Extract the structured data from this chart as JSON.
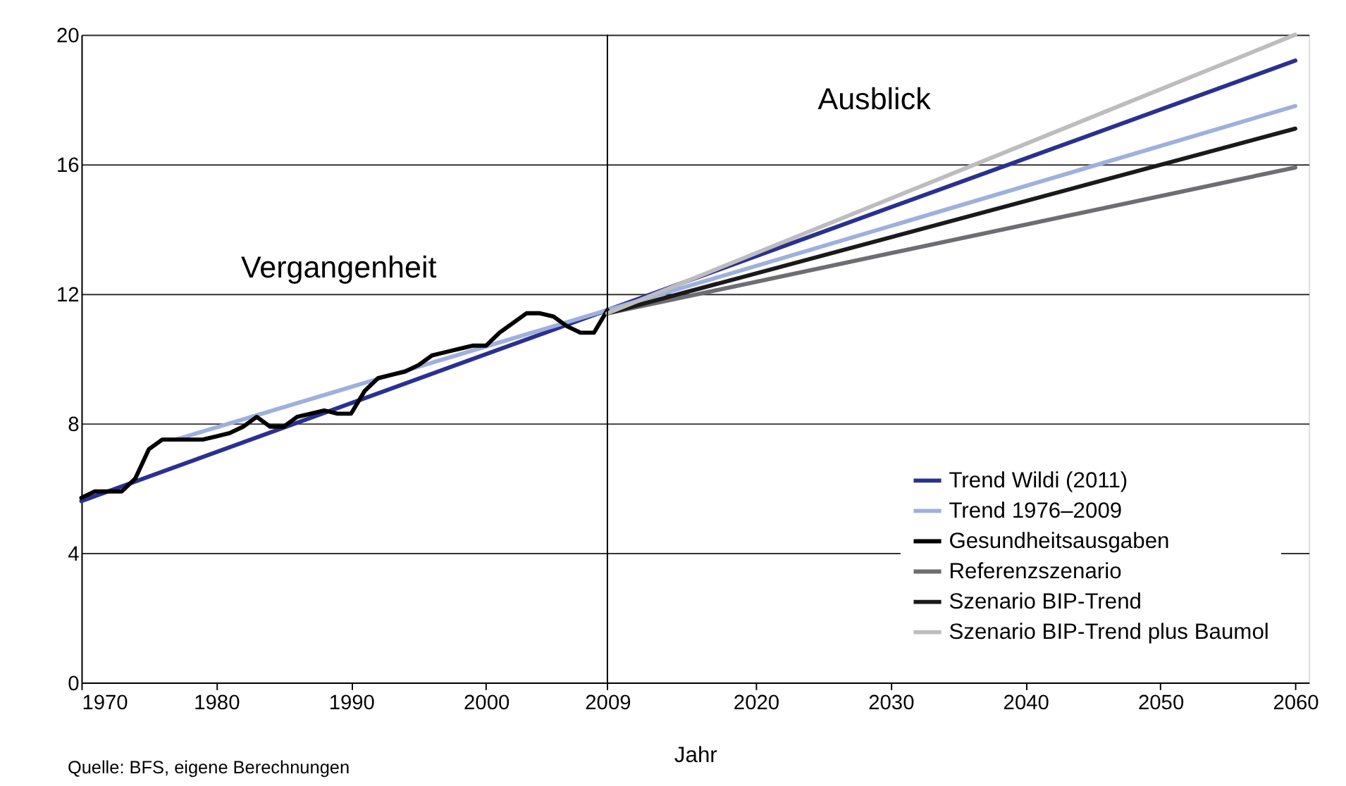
{
  "chart_data": {
    "type": "line",
    "xlabel": "Jahr",
    "annotations": [
      "Vergangenheit",
      "Ausblick",
      "Quelle: BFS, eigene Berechnungen"
    ],
    "xlim": [
      1970,
      2061
    ],
    "xticks": [
      1970,
      1980,
      1990,
      2000,
      2009,
      2020,
      2030,
      2040,
      2050,
      2060
    ],
    "ylim": [
      0,
      20
    ],
    "yticks": [
      0,
      4,
      8,
      12,
      16,
      20
    ],
    "grid": "y",
    "legend": "bottom right",
    "ref_lines": [
      {
        "axis": "x",
        "value": 2009,
        "color": "#000000"
      }
    ],
    "series": [
      {
        "name": "Trend Wildi (2011)",
        "color": "#2b3090",
        "x": [
          1970,
          2009,
          2060
        ],
        "values": [
          5.6,
          11.5,
          19.2
        ]
      },
      {
        "name": "Trend 1976–2009",
        "color": "#9fb0dd",
        "x": [
          1977,
          2009,
          2060
        ],
        "values": [
          7.5,
          11.5,
          17.8
        ]
      },
      {
        "name": "Gesundheitsausgaben",
        "color": "#000000",
        "x": [
          1970,
          1971,
          1972,
          1973,
          1974,
          1975,
          1976,
          1977,
          1978,
          1979,
          1980,
          1981,
          1982,
          1983,
          1984,
          1985,
          1986,
          1987,
          1988,
          1989,
          1990,
          1991,
          1992,
          1993,
          1994,
          1995,
          1996,
          1997,
          1998,
          1999,
          2000,
          2001,
          2002,
          2003,
          2004,
          2005,
          2006,
          2007,
          2008,
          2009
        ],
        "values": [
          5.7,
          5.9,
          5.9,
          5.9,
          6.3,
          7.2,
          7.5,
          7.5,
          7.5,
          7.5,
          7.6,
          7.7,
          7.9,
          8.2,
          7.9,
          7.9,
          8.2,
          8.3,
          8.4,
          8.3,
          8.3,
          9.0,
          9.4,
          9.5,
          9.6,
          9.8,
          10.1,
          10.2,
          10.3,
          10.4,
          10.4,
          10.8,
          11.1,
          11.4,
          11.4,
          11.3,
          11.0,
          10.8,
          10.8,
          11.5
        ]
      },
      {
        "name": "Referenzszenario",
        "color": "#6d6e71",
        "x": [
          2009,
          2060
        ],
        "values": [
          11.4,
          15.9
        ]
      },
      {
        "name": "Szenario BIP-Trend",
        "color": "#1a1a1a",
        "x": [
          2009,
          2060
        ],
        "values": [
          11.4,
          17.1
        ]
      },
      {
        "name": "Szenario BIP-Trend plus Baumol",
        "color": "#bdbdbf",
        "x": [
          2009,
          2060
        ],
        "values": [
          11.4,
          20.0
        ]
      }
    ]
  }
}
